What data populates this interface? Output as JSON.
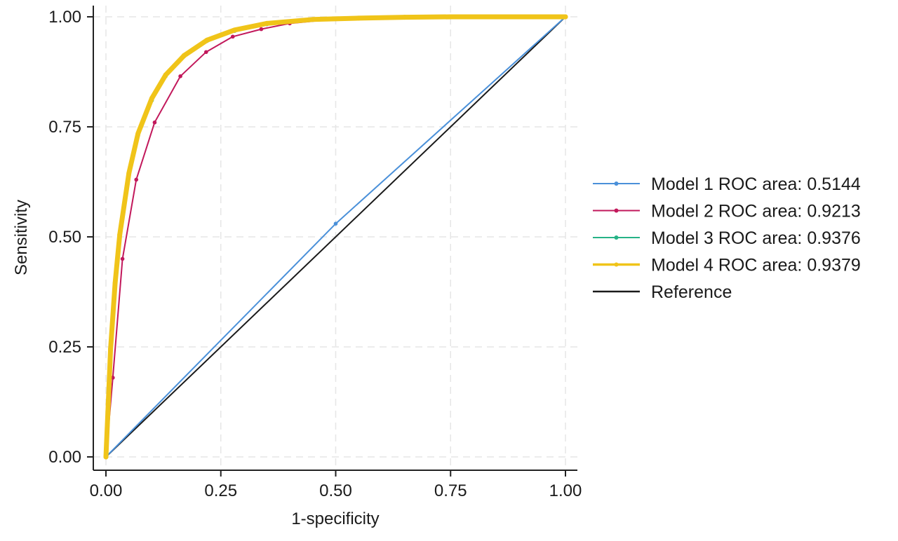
{
  "chart_data": {
    "type": "line",
    "title": "",
    "xlabel": "1-specificity",
    "ylabel": "Sensitivity",
    "xlim": [
      0,
      1
    ],
    "ylim": [
      0,
      1
    ],
    "x_ticks": [
      "0.00",
      "0.25",
      "0.50",
      "0.75",
      "1.00"
    ],
    "y_ticks": [
      "0.00",
      "0.25",
      "0.50",
      "0.75",
      "1.00"
    ],
    "grid": true,
    "legend_position": "right",
    "series": [
      {
        "name": "Model 1 ROC area: 0.5144",
        "color": "#4a90d9",
        "x": [
          0,
          0.5,
          1
        ],
        "y": [
          0,
          0.53,
          1
        ]
      },
      {
        "name": "Model 2 ROC area: 0.9213",
        "color": "#c2185b",
        "x": [
          0,
          0.015,
          0.036,
          0.066,
          0.106,
          0.162,
          0.218,
          0.276,
          0.338,
          0.4,
          0.5,
          0.6,
          0.8,
          1.0
        ],
        "y": [
          0,
          0.18,
          0.45,
          0.63,
          0.76,
          0.865,
          0.92,
          0.955,
          0.972,
          0.985,
          0.995,
          0.998,
          1.0,
          1.0
        ]
      },
      {
        "name": "Model 3 ROC area: 0.9376",
        "color": "#26b386",
        "x": [
          0,
          0.005,
          0.01,
          0.02,
          0.03,
          0.05,
          0.07,
          0.1,
          0.13,
          0.17,
          0.22,
          0.28,
          0.35,
          0.45,
          0.55,
          0.67,
          0.75,
          0.83,
          0.87,
          1.0
        ],
        "y": [
          0,
          0.12,
          0.24,
          0.39,
          0.5,
          0.64,
          0.73,
          0.81,
          0.865,
          0.91,
          0.945,
          0.968,
          0.983,
          0.993,
          0.997,
          0.999,
          1.0,
          1.0,
          1.0,
          1.0
        ]
      },
      {
        "name": "Model 4 ROC area: 0.9379",
        "color": "#f0c419",
        "x": [
          0,
          0.005,
          0.01,
          0.02,
          0.03,
          0.05,
          0.07,
          0.1,
          0.13,
          0.17,
          0.22,
          0.28,
          0.35,
          0.45,
          0.55,
          0.65,
          0.75,
          0.85,
          0.93,
          1.0
        ],
        "y": [
          0,
          0.12,
          0.245,
          0.395,
          0.505,
          0.645,
          0.735,
          0.815,
          0.868,
          0.912,
          0.947,
          0.97,
          0.985,
          0.994,
          0.997,
          0.999,
          1.0,
          1.0,
          1.0,
          1.0
        ]
      },
      {
        "name": "Reference",
        "color": "#1a1a1a",
        "x": [
          0,
          1
        ],
        "y": [
          0,
          1
        ]
      }
    ]
  }
}
